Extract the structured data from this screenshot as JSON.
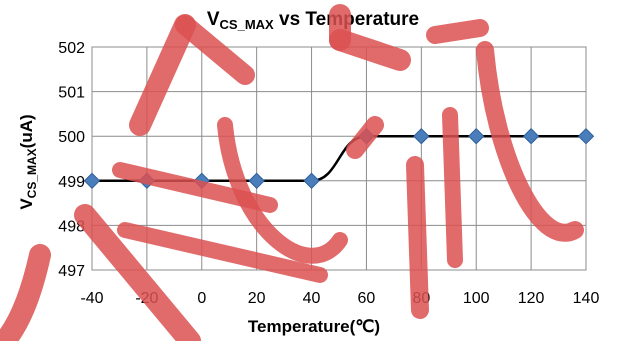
{
  "chart_data": {
    "type": "line",
    "title": {
      "main": "V",
      "sub": "CS_MAX",
      "rest": " vs Temperature"
    },
    "xlabel": "Temperature(℃)",
    "ylabel": {
      "main": "V",
      "sub": "CS_MAX",
      "rest": "(uA)"
    },
    "x": [
      -40,
      -20,
      0,
      20,
      40,
      60,
      80,
      100,
      120,
      140
    ],
    "x_ticks": [
      -40,
      -20,
      0,
      20,
      40,
      60,
      80,
      100,
      120,
      140
    ],
    "y_ticks": [
      497,
      498,
      499,
      500,
      501,
      502
    ],
    "xlim": [
      -40,
      140
    ],
    "ylim": [
      497,
      502
    ],
    "series": [
      {
        "values": [
          499,
          499,
          499,
          499,
          499,
          500,
          500,
          500,
          500,
          500
        ]
      }
    ],
    "grid": true,
    "smooth": true,
    "colors": {
      "line": "#000000",
      "marker": "#4a7ebb",
      "marker_edge": "#2c5d9a",
      "grid": "#8c8c8c"
    }
  },
  "watermark": {
    "color": "#dc5050"
  }
}
